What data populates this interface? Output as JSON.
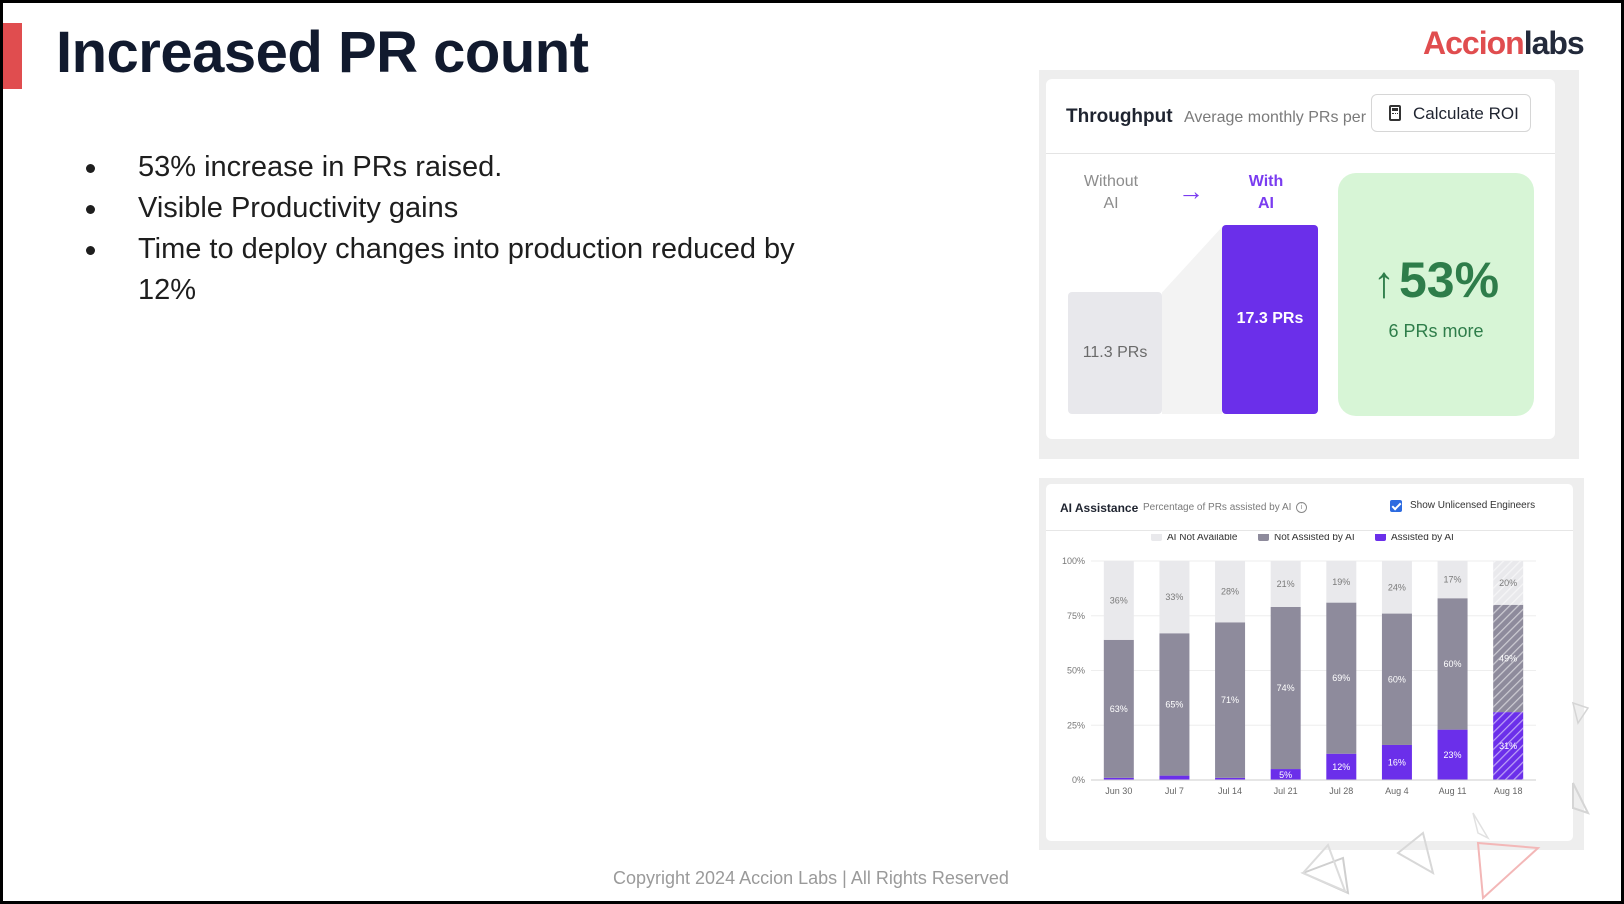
{
  "slide": {
    "title": "Increased PR count",
    "logo_part1": "Accion",
    "logo_part2": "labs",
    "bullets": [
      "53% increase in PRs raised.",
      "Visible Productivity gains",
      "Time to deploy changes into production reduced by 12%"
    ],
    "copyright": "Copyright 2024 Accion Labs | All Rights Reserved"
  },
  "throughput": {
    "title": "Throughput",
    "subtitle": "Average monthly PRs per",
    "roi_button": "Calculate ROI",
    "roi_icon": "calculator-icon",
    "without_label": "Without AI",
    "with_label": "With AI",
    "arrow_icon": "arrow-right-icon",
    "without_value": "11.3 PRs",
    "with_value": "17.3 PRs",
    "gain_percent": "53%",
    "gain_icon": "arrow-up-icon",
    "gain_sub": "6 PRs more"
  },
  "ai_assistance": {
    "title": "AI Assistance",
    "subtitle": "Percentage of PRs assisted by AI",
    "info_icon": "info-icon",
    "checkbox_label": "Show Unlicensed Engineers",
    "checkbox_checked": true
  },
  "chart_data": {
    "type": "bar",
    "stacked": true,
    "categories": [
      "Jun 30",
      "Jul 7",
      "Jul 14",
      "Jul 21",
      "Jul 28",
      "Aug 4",
      "Aug 11",
      "Aug 18"
    ],
    "series": [
      {
        "name": "Assisted by AI",
        "color": "#6b2fea",
        "values": [
          1,
          2,
          1,
          5,
          12,
          16,
          23,
          31
        ],
        "labels": [
          "",
          "",
          "",
          "5%",
          "12%",
          "16%",
          "23%",
          "31%"
        ]
      },
      {
        "name": "Not Assisted by AI",
        "color": "#8e8b9c",
        "values": [
          63,
          65,
          71,
          74,
          69,
          60,
          60,
          49
        ],
        "labels": [
          "63%",
          "65%",
          "71%",
          "74%",
          "69%",
          "60%",
          "60%",
          "49%"
        ]
      },
      {
        "name": "AI Not Available",
        "color": "#e9e9ec",
        "values": [
          36,
          33,
          28,
          21,
          19,
          24,
          17,
          20
        ],
        "labels": [
          "36%",
          "33%",
          "28%",
          "21%",
          "19%",
          "24%",
          "17%",
          "20%"
        ]
      }
    ],
    "ylim": [
      0,
      100
    ],
    "yticks": [
      "0%",
      "25%",
      "50%",
      "75%",
      "100%"
    ],
    "hatched_last_bar": true,
    "legend_position": "top-center"
  }
}
